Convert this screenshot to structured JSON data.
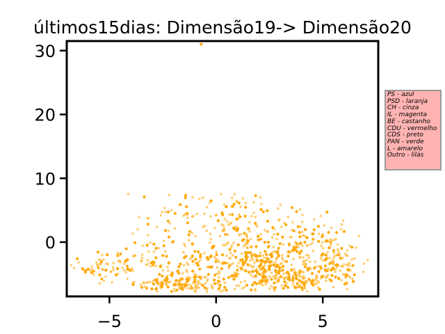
{
  "chart_data": {
    "type": "scatter",
    "title": "últimos15dias: Dimensão19-> Dimensão20",
    "xlabel": "",
    "ylabel": "",
    "xlim": [
      -7,
      7.6
    ],
    "ylim": [
      -8.5,
      31.5
    ],
    "xticks": [
      -5,
      0,
      5
    ],
    "yticks": [
      0,
      10,
      20,
      30
    ],
    "xtick_labels": [
      "−5",
      "0",
      "5"
    ],
    "ytick_labels": [
      "0",
      "10",
      "20",
      "30"
    ],
    "grid": false,
    "point_color": "#ffa500",
    "legend_placement": "right, outside plot",
    "legend_background": "#ffb3b3",
    "legend": [
      "PS - azul",
      "PSD - laranja",
      "CH - cinza",
      "IL - magenta",
      "BE - castanho",
      "CDU - vermelho",
      "CDS - preto",
      "PAN - verde",
      "L - amarelo",
      "Outro - lilás"
    ],
    "clusters": [
      {
        "cx": -5.2,
        "cy": -3.8,
        "sx": 0.9,
        "sy": 1.1,
        "n": 70
      },
      {
        "cx": -2.0,
        "cy": -6.5,
        "sx": 0.9,
        "sy": 0.7,
        "n": 90
      },
      {
        "cx": -0.5,
        "cy": -6.5,
        "sx": 1.0,
        "sy": 0.8,
        "n": 60
      },
      {
        "cx": 2.2,
        "cy": -4.5,
        "sx": 0.9,
        "sy": 1.6,
        "n": 170
      },
      {
        "cx": 4.0,
        "cy": -5.8,
        "sx": 0.9,
        "sy": 1.2,
        "n": 110
      },
      {
        "cx": 5.8,
        "cy": -4.0,
        "sx": 0.6,
        "sy": 1.5,
        "n": 80
      },
      {
        "cx": 0.8,
        "cy": -1.5,
        "sx": 1.2,
        "sy": 1.5,
        "n": 70
      },
      {
        "cx": 1.0,
        "cy": 3.5,
        "sx": 0.8,
        "sy": 2.5,
        "n": 80
      },
      {
        "cx": -1.5,
        "cy": 2.5,
        "sx": 1.0,
        "sy": 3.0,
        "n": 60
      },
      {
        "cx": 3.5,
        "cy": 1.0,
        "sx": 1.2,
        "sy": 2.2,
        "n": 90
      },
      {
        "cx": -3.0,
        "cy": -2.0,
        "sx": 0.8,
        "sy": 2.0,
        "n": 40
      },
      {
        "cx": 4.5,
        "cy": -1.5,
        "sx": 1.2,
        "sy": 1.5,
        "n": 70
      },
      {
        "cx": -0.5,
        "cy": -3.5,
        "sx": 1.5,
        "sy": 1.2,
        "n": 60
      }
    ],
    "outliers": [
      {
        "x": -0.7,
        "y": 31.0
      }
    ]
  }
}
